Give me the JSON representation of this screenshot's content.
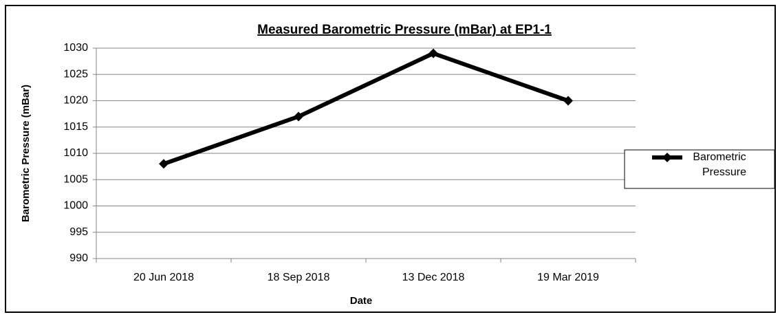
{
  "chart_data": {
    "type": "line",
    "title": "Measured Barometric Pressure (mBar) at EP1-1",
    "x_label": "Date",
    "y_label": "Barometric Pressure (mBar)",
    "categories": [
      "20 Jun 2018",
      "18 Sep 2018",
      "13 Dec 2018",
      "19 Mar 2019"
    ],
    "series": [
      {
        "name": "Barometric Pressure",
        "color": "#000000",
        "values": [
          1008,
          1017,
          1029,
          1020
        ]
      }
    ],
    "ylim": [
      990,
      1030
    ],
    "yticks": [
      990,
      995,
      1000,
      1005,
      1010,
      1015,
      1020,
      1025,
      1030
    ],
    "grid": true,
    "legend": "right",
    "marker": "diamond"
  }
}
